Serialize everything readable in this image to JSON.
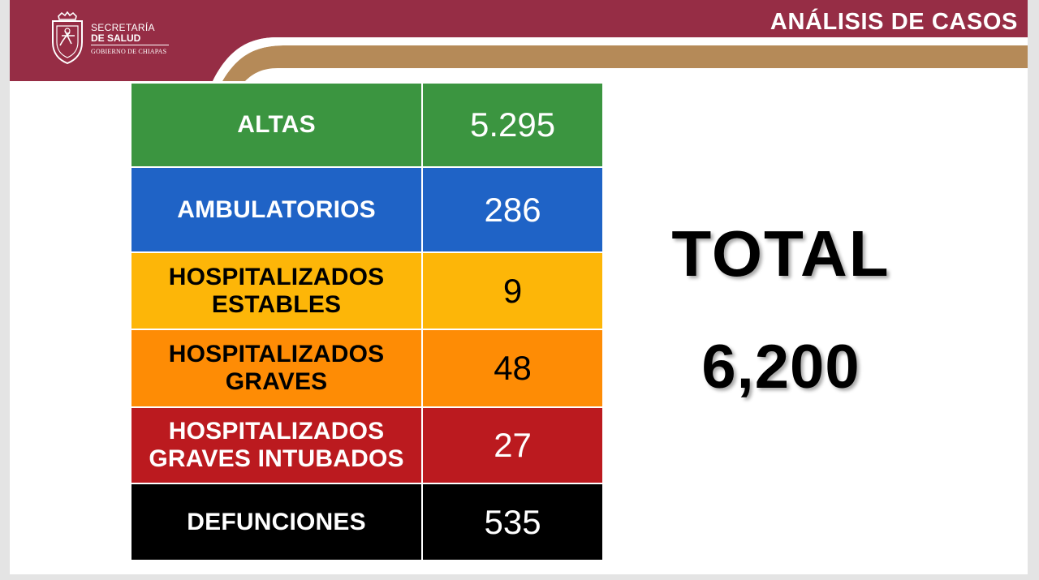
{
  "header": {
    "title": "ANÁLISIS DE CASOS",
    "brand": {
      "line1": "SECRETARÍA",
      "line2": "DE SALUD",
      "line3": "GOBIERNO DE CHIAPAS"
    },
    "colors": {
      "maroon": "#962d45",
      "gold": "#b58a58"
    }
  },
  "table": {
    "rows": [
      {
        "label": "ALTAS",
        "value": "5.295",
        "bg": "#3b9540",
        "fg": "#ffffff"
      },
      {
        "label": "AMBULATORIOS",
        "value": "286",
        "bg": "#1f63c6",
        "fg": "#ffffff"
      },
      {
        "label": "HOSPITALIZADOS ESTABLES",
        "value": "9",
        "bg": "#fdb608",
        "fg": "#000000"
      },
      {
        "label": "HOSPITALIZADOS GRAVES",
        "value": "48",
        "bg": "#fe8c05",
        "fg": "#000000"
      },
      {
        "label": "HOSPITALIZADOS GRAVES INTUBADOS",
        "value": "27",
        "bg": "#bb1a1f",
        "fg": "#ffffff"
      },
      {
        "label": "DEFUNCIONES",
        "value": "535",
        "bg": "#000000",
        "fg": "#ffffff"
      }
    ]
  },
  "total": {
    "label": "TOTAL",
    "value": "6,200"
  }
}
